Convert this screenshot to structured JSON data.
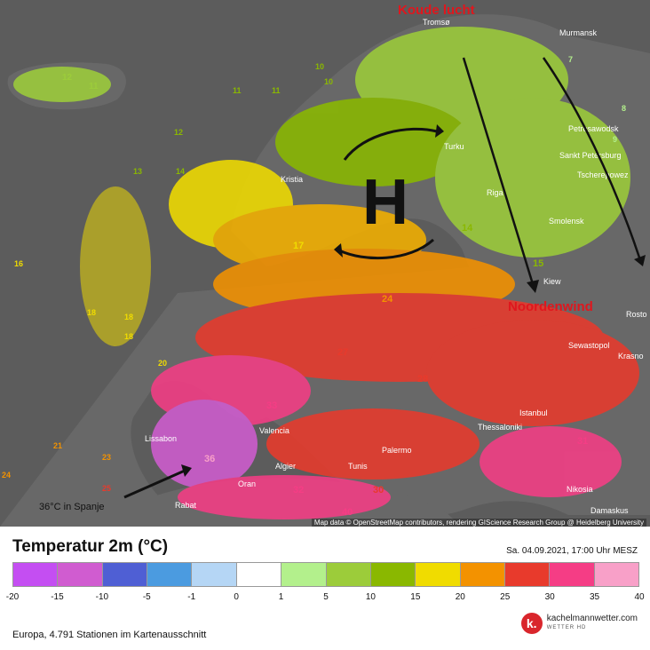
{
  "map": {
    "annotations": {
      "cold_air": "Koude lucht",
      "north_wind": "Noordenwind",
      "high": "H",
      "spain_note": "36°C in Spanje"
    },
    "attribution": "Map data © OpenStreetMap contributors, rendering GIScience Research Group @ Heidelberg University",
    "cities": [
      "Tromsø",
      "Murmansk",
      "Petrosawodsk",
      "Sankt Petersburg",
      "Tscherepowez",
      "Turku",
      "Kristia",
      "Riga",
      "Smolensk",
      "Kiew",
      "Rosto",
      "Krasno",
      "Sewastopol",
      "Istanbul",
      "Thessaloniki",
      "Lissabon",
      "Valencia",
      "Algier",
      "Tunis",
      "Palermo",
      "Oran",
      "Rabat",
      "Nikosia",
      "Damaskus"
    ],
    "colors": {
      "background": "#5c5c5c",
      "land": "#686868",
      "cold_air_label": "#e0161d",
      "arrow": "#111111"
    }
  },
  "legend": {
    "title": "Temperatur 2m (°C)",
    "date": "Sa. 04.09.2021, 17:00 Uhr MESZ",
    "ticks": [
      "-20",
      "-15",
      "-10",
      "-5",
      "-1",
      "0",
      "1",
      "5",
      "10",
      "15",
      "20",
      "25",
      "30",
      "35",
      "40"
    ],
    "colors": [
      "#c44ef2",
      "#d05cd0",
      "#4f5fd4",
      "#4b9be0",
      "#b5d6f5",
      "#ffffff",
      "#b3f08c",
      "#9ccc3a",
      "#8ab800",
      "#f0dc00",
      "#f39200",
      "#e83a2c",
      "#f53d85",
      "#f8a0c8"
    ],
    "footer": "Europa, 4.791 Stationen im Kartenausschnitt",
    "brand": "kachelmannwetter.com",
    "brand_sub": "WETTER HD",
    "brand_mark": "k."
  }
}
